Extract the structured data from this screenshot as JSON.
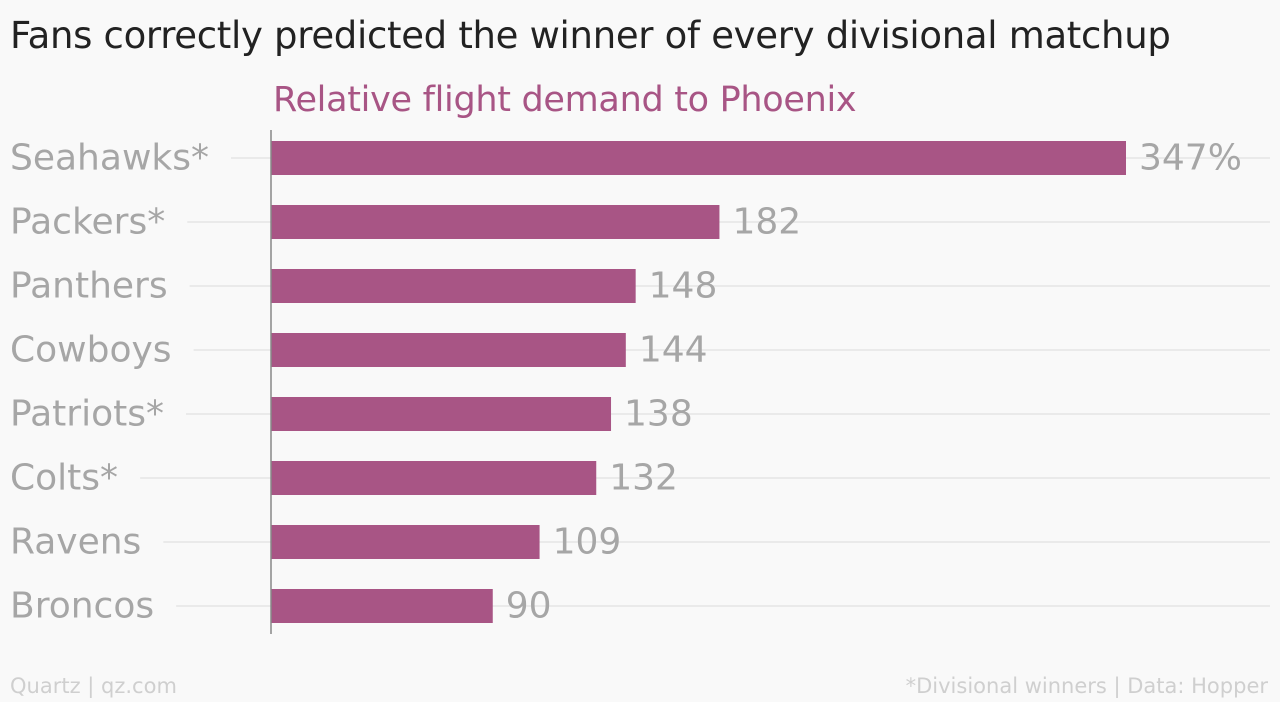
{
  "title": "Fans correctly predicted the winner of every divisional matchup",
  "subtitle": "Relative flight demand to Phoenix",
  "footer_left": "Quartz | qz.com",
  "footer_right": "*Divisional winners | Data: Hopper",
  "colors": {
    "bar": "#a85585",
    "subtitle": "#a85585",
    "label": "#a6a6a6",
    "grid": "#e6e6e6",
    "axis": "#888888"
  },
  "chart_data": {
    "type": "bar",
    "orientation": "horizontal",
    "title": "Relative flight demand to Phoenix",
    "categories": [
      "Seahawks*",
      "Packers*",
      "Panthers",
      "Cowboys",
      "Patriots*",
      "Colts*",
      "Ravens",
      "Broncos"
    ],
    "values": [
      347,
      182,
      148,
      144,
      138,
      132,
      109,
      90
    ],
    "value_labels": [
      "347%",
      "182",
      "148",
      "144",
      "138",
      "132",
      "109",
      "90"
    ],
    "unit": "%",
    "xlim": [
      0,
      347
    ],
    "grid": true,
    "legend": "none"
  }
}
